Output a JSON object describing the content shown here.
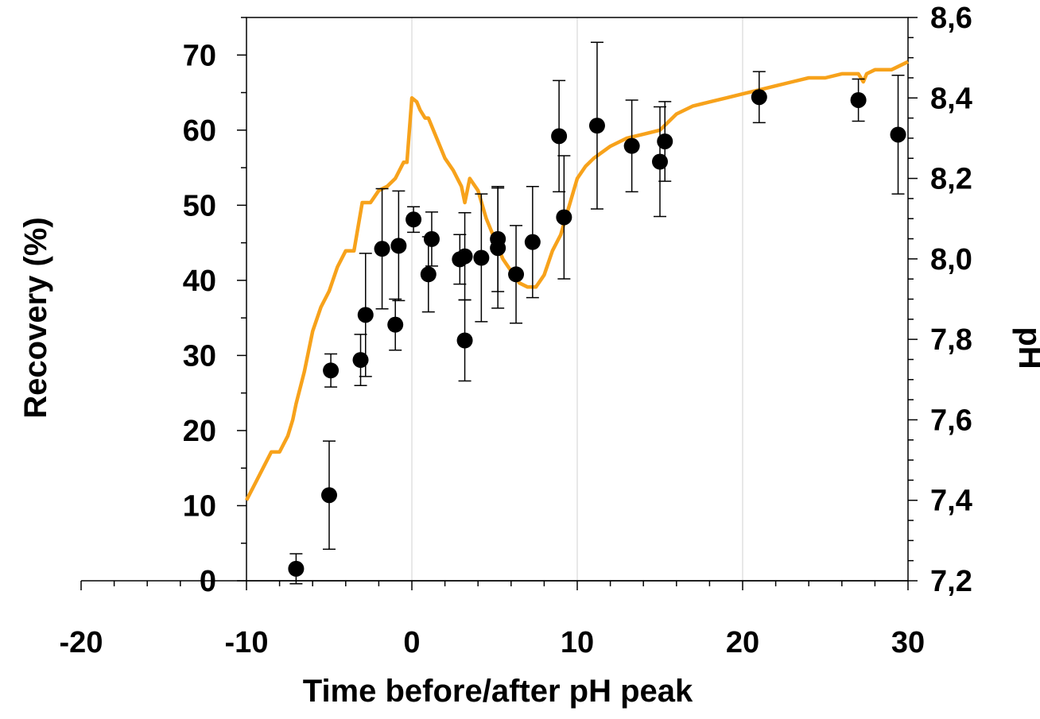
{
  "chart_data": {
    "type": "scatter",
    "xlabel": "Time before/after pH peak",
    "ylabel_left": "Recovery (%)",
    "ylabel_right": "pH",
    "xlim": [
      -20,
      30
    ],
    "ylim_left": [
      0,
      75
    ],
    "ylim_right": [
      7.2,
      8.6
    ],
    "x_ticks": [
      "-20",
      "-10",
      "0",
      "10",
      "20",
      "30"
    ],
    "y_left_ticks": [
      "0",
      "10",
      "20",
      "30",
      "40",
      "50",
      "60",
      "70"
    ],
    "y_right_ticks": [
      "7,2",
      "7,4",
      "7,6",
      "7,8",
      "8,0",
      "8,2",
      "8,4",
      "8,6"
    ],
    "vertical_gridlines_at": [
      0,
      10,
      20
    ],
    "plot_area_starts_at_x": -10,
    "colors": {
      "points": "#000000",
      "ph_line": "#f7a21b",
      "grid": "#d9d9d9"
    },
    "series": [
      {
        "axis": "left",
        "kind": "points-with-error-bars",
        "points": [
          {
            "x": -7.0,
            "y": 1.6,
            "err": 2.0
          },
          {
            "x": -5.0,
            "y": 11.4,
            "err": 7.2
          },
          {
            "x": -4.9,
            "y": 28.0,
            "err": 2.2
          },
          {
            "x": -3.1,
            "y": 29.4,
            "err": 3.4
          },
          {
            "x": -2.8,
            "y": 35.4,
            "err": 8.2
          },
          {
            "x": -1.8,
            "y": 44.2,
            "err": 8.0
          },
          {
            "x": -1.0,
            "y": 34.1,
            "err": 3.4
          },
          {
            "x": -0.8,
            "y": 44.6,
            "err": 7.3
          },
          {
            "x": 0.1,
            "y": 48.1,
            "err": 1.7
          },
          {
            "x": 1.0,
            "y": 40.8,
            "err": 5.0
          },
          {
            "x": 1.2,
            "y": 45.5,
            "err": 3.6
          },
          {
            "x": 2.9,
            "y": 42.8,
            "err": 3.3
          },
          {
            "x": 3.2,
            "y": 43.2,
            "err": 5.8
          },
          {
            "x": 3.2,
            "y": 32.0,
            "err": 5.4
          },
          {
            "x": 4.2,
            "y": 43.0,
            "err": 8.5
          },
          {
            "x": 5.2,
            "y": 45.5,
            "err": 7.0
          },
          {
            "x": 5.2,
            "y": 44.3,
            "err": 8.0
          },
          {
            "x": 6.3,
            "y": 40.8,
            "err": 6.5
          },
          {
            "x": 7.3,
            "y": 45.1,
            "err": 7.4
          },
          {
            "x": 8.9,
            "y": 59.2,
            "err": 7.4
          },
          {
            "x": 9.2,
            "y": 48.4,
            "err": 8.2
          },
          {
            "x": 11.2,
            "y": 60.6,
            "err": 11.1
          },
          {
            "x": 13.3,
            "y": 57.9,
            "err": 6.1
          },
          {
            "x": 15.0,
            "y": 55.8,
            "err": 7.3
          },
          {
            "x": 15.3,
            "y": 58.5,
            "err": 5.3
          },
          {
            "x": 21.0,
            "y": 64.4,
            "err": 3.4
          },
          {
            "x": 27.0,
            "y": 64.0,
            "err": 2.8
          },
          {
            "x": 29.4,
            "y": 59.4,
            "err": 7.9
          }
        ]
      },
      {
        "axis": "right",
        "kind": "line",
        "x": [
          -10,
          -9.5,
          -9,
          -8.5,
          -8,
          -7.5,
          -7.2,
          -7,
          -6.5,
          -6,
          -5.5,
          -5,
          -4.5,
          -4,
          -3.5,
          -3,
          -2.5,
          -2,
          -1.5,
          -1,
          -0.5,
          -0.3,
          0,
          0.3,
          0.5,
          0.8,
          1,
          1.5,
          2,
          2.5,
          3,
          3.2,
          3.5,
          4,
          4.5,
          5,
          5.5,
          6,
          6.5,
          7,
          7.5,
          8,
          8.5,
          9,
          9.5,
          10,
          10.5,
          11,
          12,
          13,
          14,
          15,
          16,
          17,
          18,
          19,
          20,
          21,
          22,
          23,
          24,
          25,
          26,
          27,
          27.3,
          27.5,
          28,
          29,
          30
        ],
        "y": [
          7.4,
          7.44,
          7.48,
          7.52,
          7.52,
          7.56,
          7.6,
          7.64,
          7.72,
          7.82,
          7.88,
          7.92,
          7.98,
          8.02,
          8.02,
          8.14,
          8.14,
          8.17,
          8.18,
          8.2,
          8.24,
          8.24,
          8.4,
          8.39,
          8.37,
          8.35,
          8.35,
          8.3,
          8.25,
          8.22,
          8.18,
          8.14,
          8.2,
          8.17,
          8.1,
          8.05,
          8.0,
          7.97,
          7.94,
          7.93,
          7.93,
          7.96,
          8.02,
          8.06,
          8.13,
          8.2,
          8.23,
          8.25,
          8.28,
          8.3,
          8.31,
          8.32,
          8.36,
          8.38,
          8.39,
          8.4,
          8.41,
          8.42,
          8.43,
          8.44,
          8.45,
          8.45,
          8.46,
          8.46,
          8.44,
          8.46,
          8.47,
          8.47,
          8.49
        ]
      }
    ]
  }
}
